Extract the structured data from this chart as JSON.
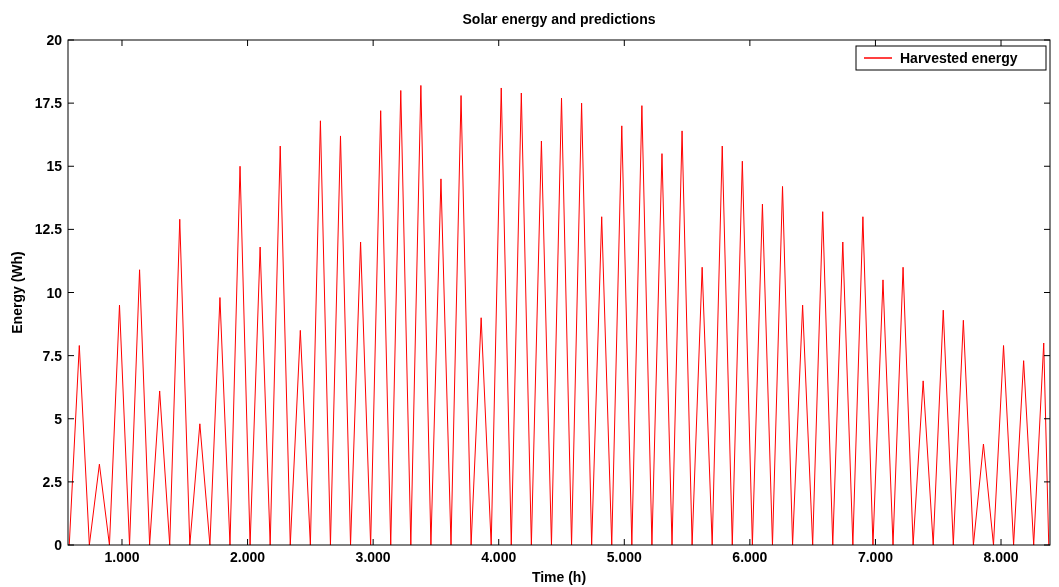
{
  "chart_data": {
    "type": "line",
    "title": "Solar energy and predictions",
    "xlabel": "Time (h)",
    "ylabel": "Energy (Wh)",
    "xlim": [
      0.57,
      8.39
    ],
    "xticks": [
      {
        "value": 1,
        "label": "1.000"
      },
      {
        "value": 2,
        "label": "2.000"
      },
      {
        "value": 3,
        "label": "3.000"
      },
      {
        "value": 4,
        "label": "4.000"
      },
      {
        "value": 5,
        "label": "5.000"
      },
      {
        "value": 6,
        "label": "6.000"
      },
      {
        "value": 7,
        "label": "7.000"
      },
      {
        "value": 8,
        "label": "8.000"
      }
    ],
    "ylim": [
      0,
      20
    ],
    "yticks": [
      0,
      2.5,
      5,
      7.5,
      10,
      12.5,
      15,
      17.5,
      20
    ],
    "legend": "top right",
    "grid": false,
    "marker": "none",
    "line_style": "solid",
    "series": [
      {
        "name": "Harvested energy",
        "color": "#ff0000",
        "x": [
          0.58,
          0.66,
          0.74,
          0.82,
          0.9,
          0.98,
          1.06,
          1.14,
          1.22,
          1.3,
          1.38,
          1.46,
          1.54,
          1.62,
          1.7,
          1.78,
          1.86,
          1.94,
          2.02,
          2.1,
          2.18,
          2.26,
          2.34,
          2.42,
          2.5,
          2.58,
          2.66,
          2.74,
          2.82,
          2.9,
          2.98,
          3.06,
          3.14,
          3.22,
          3.3,
          3.38,
          3.46,
          3.54,
          3.62,
          3.7,
          3.78,
          3.86,
          3.94,
          4.02,
          4.1,
          4.18,
          4.26,
          4.34,
          4.42,
          4.5,
          4.58,
          4.66,
          4.74,
          4.82,
          4.9,
          4.98,
          5.06,
          5.14,
          5.22,
          5.3,
          5.38,
          5.46,
          5.54,
          5.62,
          5.7,
          5.78,
          5.86,
          5.94,
          6.02,
          6.1,
          6.18,
          6.26,
          6.34,
          6.42,
          6.5,
          6.58,
          6.66,
          6.74,
          6.82,
          6.9,
          6.98,
          7.06,
          7.14,
          7.22,
          7.3,
          7.38,
          7.46,
          7.54,
          7.62,
          7.7,
          7.78,
          7.86,
          7.94,
          8.02,
          8.1,
          8.18,
          8.26,
          8.34,
          8.38
        ],
        "values": [
          0,
          7.9,
          0,
          3.2,
          0,
          9.5,
          0,
          10.9,
          0,
          6.1,
          0,
          12.9,
          0,
          4.8,
          0,
          9.8,
          0,
          15,
          0,
          11.8,
          0,
          15.8,
          0,
          8.5,
          0,
          16.8,
          0,
          16.2,
          0,
          12,
          0,
          17.2,
          0,
          18,
          0,
          18.2,
          0,
          14.5,
          0,
          17.8,
          0,
          9,
          0,
          18.1,
          0,
          17.9,
          0,
          16,
          0,
          17.7,
          0,
          17.5,
          0,
          13,
          0,
          16.6,
          0,
          17.4,
          0,
          15.5,
          0,
          16.4,
          0,
          11,
          0,
          15.8,
          0,
          15.2,
          0,
          13.5,
          0,
          14.2,
          0,
          9.5,
          0,
          13.2,
          0,
          12,
          0,
          13,
          0,
          10.5,
          0,
          11,
          0,
          6.5,
          0,
          9.3,
          0,
          8.9,
          0,
          4,
          0,
          7.9,
          0,
          7.3,
          0,
          8,
          0
        ]
      }
    ]
  }
}
